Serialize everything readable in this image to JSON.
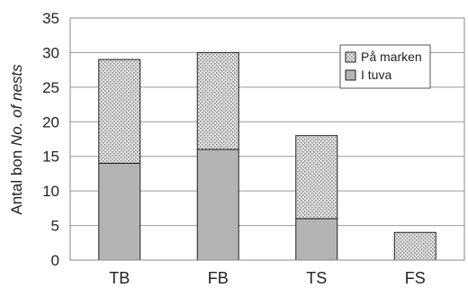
{
  "chart_data": {
    "type": "bar",
    "stacked": true,
    "categories": [
      "TB",
      "FB",
      "TS",
      "FS"
    ],
    "series": [
      {
        "name": "I tuva",
        "values": [
          14,
          16,
          6,
          0
        ],
        "color": "#b3b3b3",
        "pattern": "solid"
      },
      {
        "name": "På marken",
        "values": [
          15,
          14,
          12,
          4
        ],
        "color": "#cfcfcf",
        "pattern": "dotted"
      }
    ],
    "legend_order": [
      "På marken",
      "I tuva"
    ],
    "ylabel": {
      "plain": "Antal bon ",
      "italic": "No. of nests"
    },
    "yticks": [
      0,
      5,
      10,
      15,
      20,
      25,
      30,
      35
    ],
    "ylim": [
      0,
      35
    ],
    "grid": true,
    "legend_position": "top-right"
  }
}
